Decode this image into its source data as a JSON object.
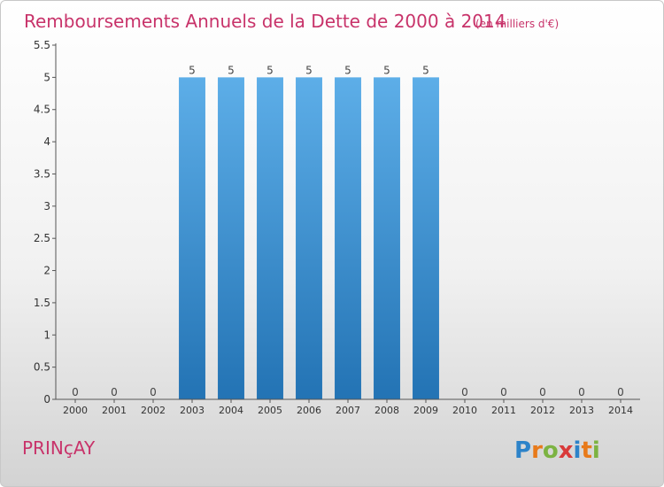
{
  "chart_data": {
    "type": "bar",
    "title": "Remboursements Annuels de la Dette de 2000 à 2014",
    "unit_note": "(en milliers d'€)",
    "categories": [
      "2000",
      "2001",
      "2002",
      "2003",
      "2004",
      "2005",
      "2006",
      "2007",
      "2008",
      "2009",
      "2010",
      "2011",
      "2012",
      "2013",
      "2014"
    ],
    "values": [
      0,
      0,
      0,
      5,
      5,
      5,
      5,
      5,
      5,
      5,
      0,
      0,
      0,
      0,
      0
    ],
    "data_labels": [
      "0",
      "0",
      "0",
      "5",
      "5",
      "5",
      "5",
      "5",
      "5",
      "5",
      "0",
      "0",
      "0",
      "0",
      "0"
    ],
    "ylim": [
      0,
      5.5
    ],
    "yticks": [
      0,
      0.5,
      1,
      1.5,
      2,
      2.5,
      3,
      3.5,
      4,
      4.5,
      5,
      5.5
    ],
    "ytick_labels": [
      "0",
      "0.5",
      "1",
      "1.5",
      "2",
      "2.5",
      "3",
      "3.5",
      "4",
      "4.5",
      "5",
      "5.5"
    ],
    "grid": false,
    "bar_color_top": "#5daee8",
    "bar_color_bottom": "#2373b4",
    "title_color": "#c8336a"
  },
  "footer": {
    "commune": "PRINçAY",
    "logo": "Proxiti"
  }
}
